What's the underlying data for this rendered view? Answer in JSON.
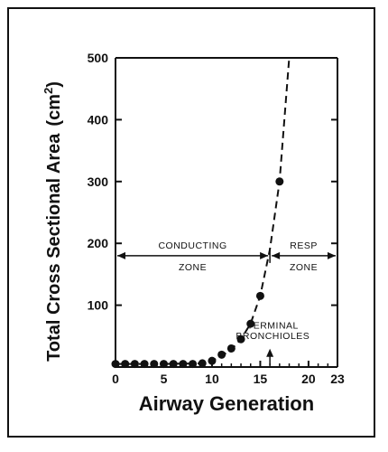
{
  "chart_data": {
    "type": "scatter",
    "title": "",
    "xlabel": "Airway Generation",
    "ylabel": "Total Cross Sectional Area",
    "ylabel_unit_base": "(cm",
    "ylabel_unit_exp": "2",
    "ylabel_unit_close": ")",
    "xlim": [
      0,
      23
    ],
    "ylim": [
      0,
      500
    ],
    "x_ticks": [
      0,
      5,
      10,
      15,
      20,
      23
    ],
    "y_ticks": [
      100,
      200,
      300,
      400,
      500
    ],
    "grid": false,
    "points": {
      "x": [
        0,
        1,
        2,
        3,
        4,
        5,
        6,
        7,
        8,
        9,
        10,
        11,
        12,
        13,
        14,
        15,
        17
      ],
      "y": [
        5,
        5,
        5,
        5,
        5,
        5,
        5,
        5,
        5,
        6,
        10,
        20,
        30,
        45,
        70,
        115,
        300
      ]
    },
    "curve": {
      "style": "dashed",
      "x": [
        0,
        5,
        9,
        10,
        11,
        12,
        13,
        14,
        15,
        16,
        17,
        18
      ],
      "y": [
        5,
        5,
        6,
        10,
        18,
        28,
        45,
        70,
        115,
        190,
        300,
        500
      ]
    },
    "annotations": {
      "conducting_line1": "CONDUCTING",
      "conducting_line2": "ZONE",
      "resp_line1": "RESP",
      "resp_line2": "ZONE",
      "terminal_line1": "TERMINAL",
      "terminal_line2": "BRONCHIOLES",
      "zone_arrow_y": 180,
      "zone_boundary_x": 16
    }
  }
}
